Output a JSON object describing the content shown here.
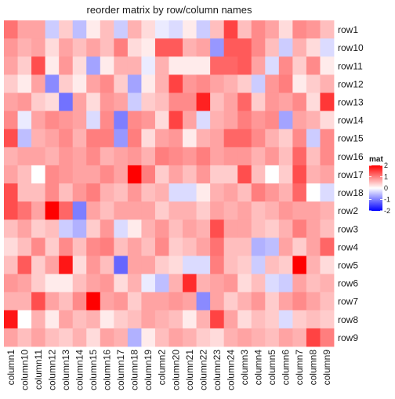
{
  "chart_data": {
    "type": "heatmap",
    "title": "reorder matrix by row/column names",
    "rows": [
      "row1",
      "row10",
      "row11",
      "row12",
      "row13",
      "row14",
      "row15",
      "row16",
      "row17",
      "row18",
      "row2",
      "row3",
      "row4",
      "row5",
      "row6",
      "row7",
      "row8",
      "row9"
    ],
    "columns": [
      "column1",
      "column10",
      "column11",
      "column12",
      "column13",
      "column14",
      "column15",
      "column16",
      "column17",
      "column18",
      "column19",
      "column2",
      "column20",
      "column21",
      "column22",
      "column23",
      "column24",
      "column3",
      "column4",
      "column5",
      "column6",
      "column7",
      "column8",
      "column9"
    ],
    "values": [
      [
        1.0,
        0.6,
        0.6,
        -0.3,
        0.3,
        -0.4,
        0.1,
        0.4,
        -0.3,
        0.5,
        0.2,
        -0.1,
        -0.2,
        0.1,
        -0.3,
        0.4,
        1.4,
        0.4,
        0.8,
        0.6,
        0.2,
        0.8,
        0.7,
        0.4
      ],
      [
        0.7,
        0.5,
        0.6,
        0.2,
        0.6,
        0.4,
        0.6,
        0.4,
        0.9,
        0.2,
        0.1,
        1.2,
        1.2,
        0.5,
        0.6,
        -0.7,
        1.2,
        1.2,
        0.8,
        0.4,
        -0.3,
        0.5,
        0.2,
        -0.2
      ],
      [
        0.6,
        0.3,
        1.3,
        0.1,
        0.7,
        0.2,
        -0.6,
        0.1,
        0.5,
        0.5,
        -0.1,
        0.5,
        0.1,
        0.1,
        0.1,
        1.1,
        1.1,
        1.2,
        0.6,
        -0.2,
        0.8,
        0.3,
        0.8,
        0.1
      ],
      [
        0.3,
        0.1,
        0.6,
        -0.8,
        0.3,
        0.1,
        0.6,
        0.8,
        0.3,
        -0.6,
        0.1,
        0.5,
        1.4,
        0.7,
        0.8,
        0.6,
        0.5,
        0.3,
        -0.3,
        0.7,
        0.9,
        0.1,
        0.3,
        0.5
      ],
      [
        0.6,
        0.7,
        0.3,
        0.2,
        -1.0,
        0.6,
        0.2,
        0.7,
        0.6,
        -0.3,
        0.3,
        0.4,
        0.8,
        0.8,
        1.7,
        0.4,
        0.6,
        1.1,
        0.3,
        0.7,
        0.6,
        0.8,
        0.2,
        1.5
      ],
      [
        0.8,
        -0.1,
        0.6,
        0.8,
        0.7,
        0.6,
        -0.2,
        0.8,
        -0.9,
        0.8,
        0.7,
        0.2,
        1.4,
        0.6,
        -0.2,
        0.5,
        0.6,
        0.9,
        0.7,
        0.8,
        -0.6,
        0.6,
        0.5,
        0.2
      ],
      [
        1.3,
        -0.4,
        0.5,
        0.6,
        0.8,
        0.5,
        0.9,
        0.9,
        -0.7,
        0.9,
        0.2,
        0.6,
        0.7,
        0.1,
        0.5,
        0.6,
        1.1,
        1.1,
        0.8,
        0.5,
        0.3,
        0.8,
        -0.3,
        0.8
      ],
      [
        0.5,
        0.6,
        0.6,
        0.5,
        0.7,
        0.6,
        0.8,
        0.5,
        0.6,
        0.7,
        0.5,
        0.9,
        0.8,
        0.7,
        0.9,
        0.6,
        0.7,
        0.7,
        0.5,
        0.7,
        0.4,
        1.1,
        0.4,
        0.8
      ],
      [
        0.6,
        0.4,
        0.0,
        0.8,
        0.7,
        0.6,
        0.6,
        0.8,
        0.6,
        2.2,
        0.9,
        0.3,
        0.6,
        0.4,
        0.7,
        0.3,
        0.3,
        1.3,
        0.4,
        0.0,
        0.3,
        1.3,
        0.5,
        0.6
      ],
      [
        1.3,
        0.4,
        0.4,
        0.8,
        0.4,
        0.7,
        0.9,
        0.5,
        0.4,
        0.7,
        0.4,
        0.5,
        -0.2,
        -0.2,
        0.1,
        0.5,
        0.6,
        0.4,
        0.9,
        0.7,
        0.5,
        1.1,
        0.0,
        -0.2
      ],
      [
        1.3,
        1.0,
        0.6,
        2.2,
        1.1,
        -0.9,
        0.6,
        0.4,
        0.6,
        0.6,
        0.6,
        0.3,
        0.5,
        0.5,
        0.3,
        0.6,
        0.5,
        0.6,
        0.4,
        0.5,
        0.7,
        0.6,
        0.6,
        0.5
      ],
      [
        0.4,
        0.6,
        0.3,
        0.4,
        -0.3,
        -0.5,
        0.3,
        0.7,
        -0.2,
        0.1,
        0.5,
        0.7,
        0.4,
        0.6,
        0.5,
        1.3,
        0.6,
        0.6,
        0.4,
        0.3,
        0.5,
        0.9,
        0.6,
        0.4
      ],
      [
        0.2,
        0.4,
        0.8,
        0.3,
        0.8,
        0.4,
        0.8,
        0.9,
        0.4,
        0.6,
        0.4,
        0.8,
        0.3,
        0.4,
        0.6,
        1.0,
        0.4,
        0.4,
        -0.5,
        -0.4,
        0.6,
        0.3,
        0.6,
        1.1
      ],
      [
        0.4,
        1.2,
        0.3,
        0.6,
        1.8,
        0.2,
        0.7,
        0.4,
        -1.1,
        0.6,
        0.6,
        0.3,
        0.2,
        -0.2,
        -0.2,
        0.9,
        0.4,
        0.3,
        -0.3,
        0.4,
        0.3,
        2.2,
        0.5,
        0.2
      ],
      [
        0.7,
        0.6,
        0.3,
        0.1,
        0.1,
        0.4,
        0.6,
        0.7,
        0.2,
        0.5,
        -0.1,
        -0.4,
        0.5,
        1.6,
        0.5,
        0.6,
        0.7,
        0.2,
        0.4,
        -0.2,
        -0.3,
        0.6,
        0.4,
        0.5
      ],
      [
        0.5,
        0.5,
        1.3,
        0.6,
        0.4,
        0.8,
        2.2,
        0.6,
        0.7,
        0.3,
        0.6,
        0.6,
        0.7,
        0.6,
        -0.8,
        0.6,
        0.3,
        0.5,
        0.7,
        0.3,
        0.6,
        0.8,
        0.6,
        0.4
      ],
      [
        1.8,
        0.0,
        0.5,
        0.1,
        0.6,
        0.4,
        0.5,
        0.1,
        0.3,
        0.4,
        0.6,
        0.5,
        0.4,
        0.1,
        0.5,
        1.4,
        0.6,
        0.2,
        0.4,
        0.3,
        -0.2,
        0.3,
        0.4,
        0.3
      ],
      [
        0.6,
        0.4,
        0.6,
        0.4,
        0.3,
        0.5,
        0.2,
        0.6,
        0.5,
        -0.5,
        0.1,
        0.4,
        0.6,
        0.5,
        0.3,
        0.2,
        0.5,
        0.6,
        0.5,
        0.4,
        0.6,
        0.5,
        1.4,
        0.9
      ]
    ],
    "legend": {
      "title": "mat",
      "ticks": [
        2,
        1,
        0,
        -1,
        -2
      ],
      "range": [
        -2,
        2
      ],
      "colors": {
        "low": "#0000ff",
        "mid": "#ffffff",
        "high": "#ff0000"
      },
      "placement": "right"
    },
    "grid": false
  }
}
